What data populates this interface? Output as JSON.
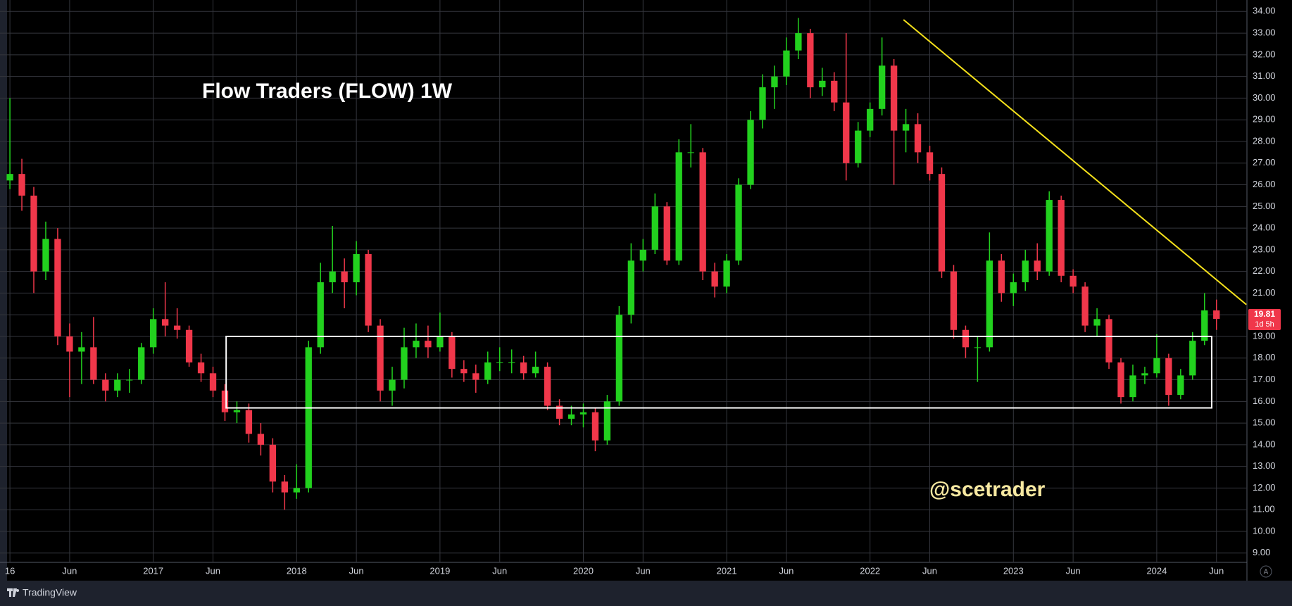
{
  "chart_data": {
    "type": "candlestick",
    "title": "Flow Traders  (FLOW) 1W",
    "watermark": "@scetrader",
    "brand": "TradingView",
    "auto_button": "A",
    "last_price": 19.81,
    "countdown": "1d 5h",
    "up_color": "#22d11e",
    "down_color": "#f0374a",
    "grid": true,
    "xlim": [
      -0.83,
      103.55
    ],
    "ylim": [
      8.57,
      34.53
    ],
    "xticks": [
      {
        "value": 0,
        "label": "16"
      },
      {
        "value": 5,
        "label": "Jun"
      },
      {
        "value": 12,
        "label": "2017"
      },
      {
        "value": 17,
        "label": "Jun"
      },
      {
        "value": 24,
        "label": "2018"
      },
      {
        "value": 29,
        "label": "Jun"
      },
      {
        "value": 36,
        "label": "2019"
      },
      {
        "value": 41,
        "label": "Jun"
      },
      {
        "value": 48,
        "label": "2020"
      },
      {
        "value": 53,
        "label": "Jun"
      },
      {
        "value": 60,
        "label": "2021"
      },
      {
        "value": 65,
        "label": "Jun"
      },
      {
        "value": 72,
        "label": "2022"
      },
      {
        "value": 77,
        "label": "Jun"
      },
      {
        "value": 84,
        "label": "2023"
      },
      {
        "value": 89,
        "label": "Jun"
      },
      {
        "value": 96,
        "label": "2024"
      },
      {
        "value": 101,
        "label": "Jun"
      }
    ],
    "yticks": [
      {
        "value": 9,
        "label": "9.00"
      },
      {
        "value": 10,
        "label": "10.00"
      },
      {
        "value": 11,
        "label": "11.00"
      },
      {
        "value": 12,
        "label": "12.00"
      },
      {
        "value": 13,
        "label": "13.00"
      },
      {
        "value": 14,
        "label": "14.00"
      },
      {
        "value": 15,
        "label": "15.00"
      },
      {
        "value": 16,
        "label": "16.00"
      },
      {
        "value": 17,
        "label": "17.00"
      },
      {
        "value": 18,
        "label": "18.00"
      },
      {
        "value": 19,
        "label": "19.00"
      },
      {
        "value": 20,
        "label": "20.00"
      },
      {
        "value": 21,
        "label": "21.00"
      },
      {
        "value": 22,
        "label": "22.00"
      },
      {
        "value": 23,
        "label": "23.00"
      },
      {
        "value": 24,
        "label": "24.00"
      },
      {
        "value": 25,
        "label": "25.00"
      },
      {
        "value": 26,
        "label": "26.00"
      },
      {
        "value": 27,
        "label": "27.00"
      },
      {
        "value": 28,
        "label": "28.00"
      },
      {
        "value": 29,
        "label": "29.00"
      },
      {
        "value": 30,
        "label": "30.00"
      },
      {
        "value": 31,
        "label": "31.00"
      },
      {
        "value": 32,
        "label": "32.00"
      },
      {
        "value": 33,
        "label": "33.00"
      },
      {
        "value": 34,
        "label": "34.00"
      }
    ],
    "ohlc": [
      [
        26.2,
        30.0,
        25.8,
        26.5
      ],
      [
        26.5,
        27.2,
        24.8,
        25.5
      ],
      [
        25.5,
        25.9,
        21.0,
        22.0
      ],
      [
        22.0,
        24.3,
        21.6,
        23.5
      ],
      [
        23.5,
        24.0,
        18.6,
        19.0
      ],
      [
        19.0,
        19.6,
        16.2,
        18.3
      ],
      [
        18.3,
        19.2,
        16.8,
        18.5
      ],
      [
        18.5,
        19.9,
        16.8,
        17.0
      ],
      [
        17.0,
        17.3,
        16.0,
        16.5
      ],
      [
        16.5,
        17.3,
        16.2,
        17.0
      ],
      [
        17.0,
        17.5,
        16.4,
        17.0
      ],
      [
        17.0,
        18.7,
        16.8,
        18.5
      ],
      [
        18.5,
        20.3,
        18.2,
        19.8
      ],
      [
        19.8,
        21.5,
        19.0,
        19.5
      ],
      [
        19.5,
        20.3,
        18.9,
        19.3
      ],
      [
        19.3,
        19.5,
        17.6,
        17.8
      ],
      [
        17.8,
        18.2,
        16.9,
        17.3
      ],
      [
        17.3,
        17.6,
        16.2,
        16.5
      ],
      [
        16.5,
        16.8,
        15.1,
        15.5
      ],
      [
        15.5,
        16.0,
        15.0,
        15.6
      ],
      [
        15.6,
        15.9,
        14.1,
        14.5
      ],
      [
        14.5,
        15.0,
        13.5,
        14.0
      ],
      [
        14.0,
        14.3,
        11.8,
        12.3
      ],
      [
        12.3,
        12.6,
        11.0,
        11.8
      ],
      [
        11.8,
        13.1,
        11.5,
        12.0
      ],
      [
        12.0,
        18.8,
        11.8,
        18.5
      ],
      [
        18.5,
        22.4,
        18.2,
        21.5
      ],
      [
        21.5,
        24.1,
        21.0,
        22.0
      ],
      [
        22.0,
        22.6,
        20.3,
        21.5
      ],
      [
        21.5,
        23.4,
        20.9,
        22.8
      ],
      [
        22.8,
        23.0,
        19.2,
        19.5
      ],
      [
        19.5,
        19.8,
        16.0,
        16.5
      ],
      [
        16.5,
        17.6,
        15.8,
        17.0
      ],
      [
        17.0,
        19.4,
        16.6,
        18.5
      ],
      [
        18.5,
        19.6,
        18.0,
        18.8
      ],
      [
        18.8,
        19.5,
        18.0,
        18.5
      ],
      [
        18.5,
        20.1,
        18.3,
        19.0
      ],
      [
        19.0,
        19.2,
        17.1,
        17.5
      ],
      [
        17.5,
        17.9,
        16.9,
        17.3
      ],
      [
        17.3,
        17.7,
        16.4,
        17.0
      ],
      [
        17.0,
        18.3,
        16.8,
        17.8
      ],
      [
        17.8,
        18.5,
        17.4,
        17.8
      ],
      [
        17.8,
        18.4,
        17.3,
        17.8
      ],
      [
        17.8,
        18.1,
        17.0,
        17.3
      ],
      [
        17.3,
        18.3,
        17.1,
        17.6
      ],
      [
        17.6,
        17.8,
        15.6,
        15.8
      ],
      [
        15.8,
        16.1,
        14.9,
        15.2
      ],
      [
        15.2,
        15.8,
        14.9,
        15.4
      ],
      [
        15.4,
        15.9,
        14.8,
        15.5
      ],
      [
        15.5,
        15.7,
        13.7,
        14.2
      ],
      [
        14.2,
        16.3,
        14.0,
        16.0
      ],
      [
        16.0,
        20.4,
        15.8,
        20.0
      ],
      [
        20.0,
        23.3,
        19.6,
        22.5
      ],
      [
        22.5,
        23.5,
        22.0,
        23.0
      ],
      [
        23.0,
        25.6,
        22.8,
        25.0
      ],
      [
        25.0,
        25.2,
        22.3,
        22.5
      ],
      [
        22.5,
        28.1,
        22.3,
        27.5
      ],
      [
        27.5,
        28.8,
        26.8,
        27.5
      ],
      [
        27.5,
        27.7,
        21.6,
        22.0
      ],
      [
        22.0,
        22.4,
        20.8,
        21.3
      ],
      [
        21.3,
        22.8,
        21.0,
        22.5
      ],
      [
        22.5,
        26.3,
        22.3,
        26.0
      ],
      [
        26.0,
        29.4,
        25.8,
        29.0
      ],
      [
        29.0,
        31.1,
        28.6,
        30.5
      ],
      [
        30.5,
        31.5,
        29.5,
        31.0
      ],
      [
        31.0,
        32.8,
        30.6,
        32.2
      ],
      [
        32.2,
        33.7,
        31.8,
        33.0
      ],
      [
        33.0,
        33.2,
        30.0,
        30.5
      ],
      [
        30.5,
        31.4,
        30.1,
        30.8
      ],
      [
        30.8,
        31.2,
        29.4,
        29.8
      ],
      [
        29.8,
        33.0,
        26.2,
        27.0
      ],
      [
        27.0,
        28.9,
        26.8,
        28.5
      ],
      [
        28.5,
        29.8,
        28.2,
        29.5
      ],
      [
        29.5,
        32.8,
        29.2,
        31.5
      ],
      [
        31.5,
        31.8,
        26.0,
        28.5
      ],
      [
        28.5,
        29.5,
        27.5,
        28.8
      ],
      [
        28.8,
        29.3,
        27.0,
        27.5
      ],
      [
        27.5,
        27.8,
        26.2,
        26.5
      ],
      [
        26.5,
        26.8,
        21.7,
        22.0
      ],
      [
        22.0,
        22.3,
        18.9,
        19.3
      ],
      [
        19.3,
        19.5,
        18.0,
        18.5
      ],
      [
        18.5,
        19.0,
        16.9,
        18.5
      ],
      [
        18.5,
        23.8,
        18.3,
        22.5
      ],
      [
        22.5,
        22.8,
        20.6,
        21.0
      ],
      [
        21.0,
        21.9,
        20.4,
        21.5
      ],
      [
        21.5,
        23.0,
        21.1,
        22.5
      ],
      [
        22.5,
        23.3,
        21.6,
        22.0
      ],
      [
        22.0,
        25.7,
        21.8,
        25.3
      ],
      [
        25.3,
        25.5,
        21.5,
        21.8
      ],
      [
        21.8,
        22.1,
        21.0,
        21.3
      ],
      [
        21.3,
        21.5,
        19.2,
        19.5
      ],
      [
        19.5,
        20.3,
        19.0,
        19.8
      ],
      [
        19.8,
        20.0,
        17.5,
        17.8
      ],
      [
        17.8,
        18.0,
        15.9,
        16.2
      ],
      [
        16.2,
        17.7,
        16.0,
        17.2
      ],
      [
        17.2,
        17.6,
        16.8,
        17.3
      ],
      [
        17.3,
        19.1,
        17.1,
        18.0
      ],
      [
        18.0,
        18.2,
        15.8,
        16.3
      ],
      [
        16.3,
        17.5,
        16.1,
        17.2
      ],
      [
        17.2,
        19.2,
        17.0,
        18.8
      ],
      [
        18.8,
        21.0,
        18.6,
        20.2
      ],
      [
        20.2,
        20.7,
        19.3,
        19.81
      ]
    ],
    "zone": {
      "xlim": [
        18.1,
        100.6
      ],
      "ylim": [
        15.7,
        19.0
      ],
      "color": "#ffffff"
    },
    "trendline": {
      "x": [
        74.8,
        103.5
      ],
      "y": [
        33.62,
        20.47
      ],
      "color": "#f5e11b"
    }
  }
}
